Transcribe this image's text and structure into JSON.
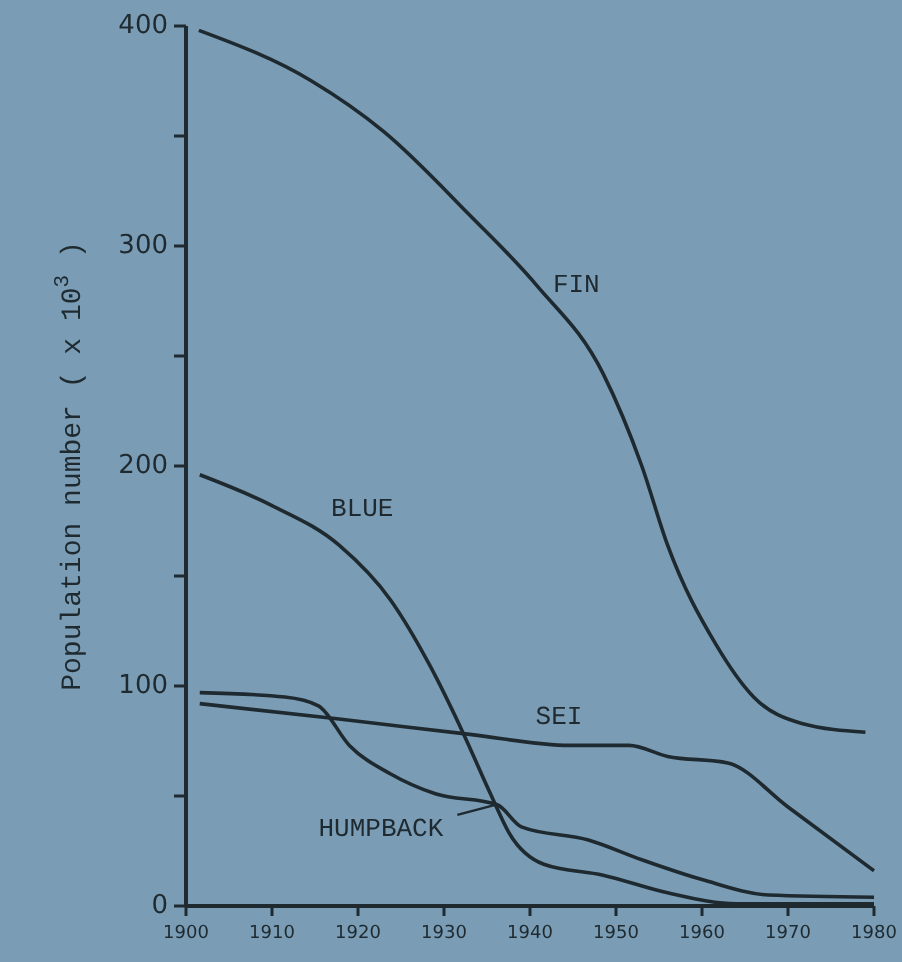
{
  "chart_data": {
    "type": "line",
    "ylabel": "Population number ( x 10$^{3}$ )",
    "xlim": [
      1900,
      1980
    ],
    "xticks": [
      1900,
      1910,
      1920,
      1930,
      1940,
      1950,
      1960,
      1970,
      1980
    ],
    "ylim": [
      0,
      400
    ],
    "yticks": [
      0,
      {
        "value": 50,
        "label": null
      },
      100,
      {
        "value": 150,
        "label": null
      },
      200,
      {
        "value": 250,
        "label": null
      },
      300,
      {
        "value": 350,
        "label": null
      },
      400
    ],
    "grid": false,
    "marker": "none",
    "line_style": "solid",
    "series": [
      {
        "name": "FIN",
        "color": "#1e2a30",
        "x": [
          1901.5,
          1914.6,
          1923,
          1933,
          1940.8,
          1948.5,
          1953,
          1956,
          1961.6,
          1966,
          1971.6,
          1979
        ],
        "values": [
          398,
          375,
          352,
          314,
          282,
          242,
          200,
          164,
          119,
          95,
          83,
          79
        ]
      },
      {
        "name": "BLUE",
        "color": "#1e2a30",
        "x": [
          1901.6,
          1910,
          1917.8,
          1923.8,
          1928.4,
          1932.3,
          1935.4,
          1937.6,
          1941.6,
          1948.5,
          1956,
          1964,
          1980
        ],
        "values": [
          196,
          182,
          164,
          139,
          109,
          78,
          51,
          33,
          19,
          14,
          6,
          1,
          1
        ]
      },
      {
        "name": "SEI",
        "color": "#1e2a30",
        "x": [
          1901.6,
          1917.8,
          1933,
          1944.6,
          1951.5,
          1956,
          1963,
          1970,
          1980
        ],
        "values": [
          92,
          85,
          78,
          73,
          73,
          68,
          65,
          45,
          16
        ]
      },
      {
        "name": "HUMPBACK",
        "color": "#1e2a30",
        "x": [
          1901.6,
          1911.5,
          1915.4,
          1919,
          1923.8,
          1929,
          1936.2,
          1939,
          1946.8,
          1953,
          1960,
          1967.7,
          1980
        ],
        "values": [
          97,
          95,
          91,
          73,
          60,
          51,
          46,
          36,
          30,
          21,
          12,
          5,
          4
        ]
      }
    ]
  }
}
